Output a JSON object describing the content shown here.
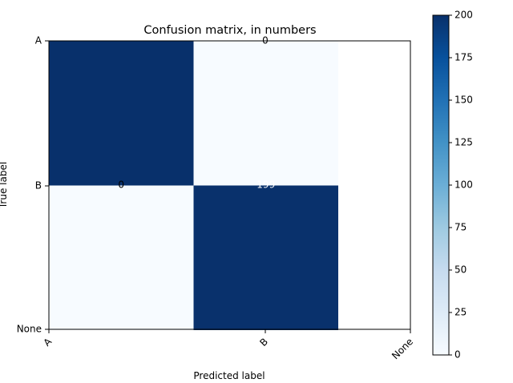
{
  "chart_data": {
    "type": "heatmap",
    "title": "Confusion matrix, in numbers",
    "xlabel": "Predicted label",
    "ylabel": "True label",
    "x_ticks": [
      "A",
      "B",
      "None"
    ],
    "y_ticks": [
      "A",
      "B",
      "None"
    ],
    "cells": [
      {
        "row": "A",
        "col": "A",
        "value": 200,
        "label": ""
      },
      {
        "row": "A",
        "col": "B",
        "value": 0,
        "label": "0"
      },
      {
        "row": "B",
        "col": "A",
        "value": 0,
        "label": "0"
      },
      {
        "row": "B",
        "col": "B",
        "value": 199,
        "label": "199"
      }
    ],
    "colormap": "Blues",
    "colormap_low": "#f7fbff",
    "colormap_high": "#08306b",
    "label_color_light": "#000000",
    "label_color_dark": "#ffffff",
    "colorbar": {
      "min": 0,
      "max": 200,
      "ticks": [
        0,
        25,
        50,
        75,
        100,
        125,
        150,
        175,
        200
      ]
    },
    "x_tick_rotation_deg": 45,
    "grid": false
  }
}
